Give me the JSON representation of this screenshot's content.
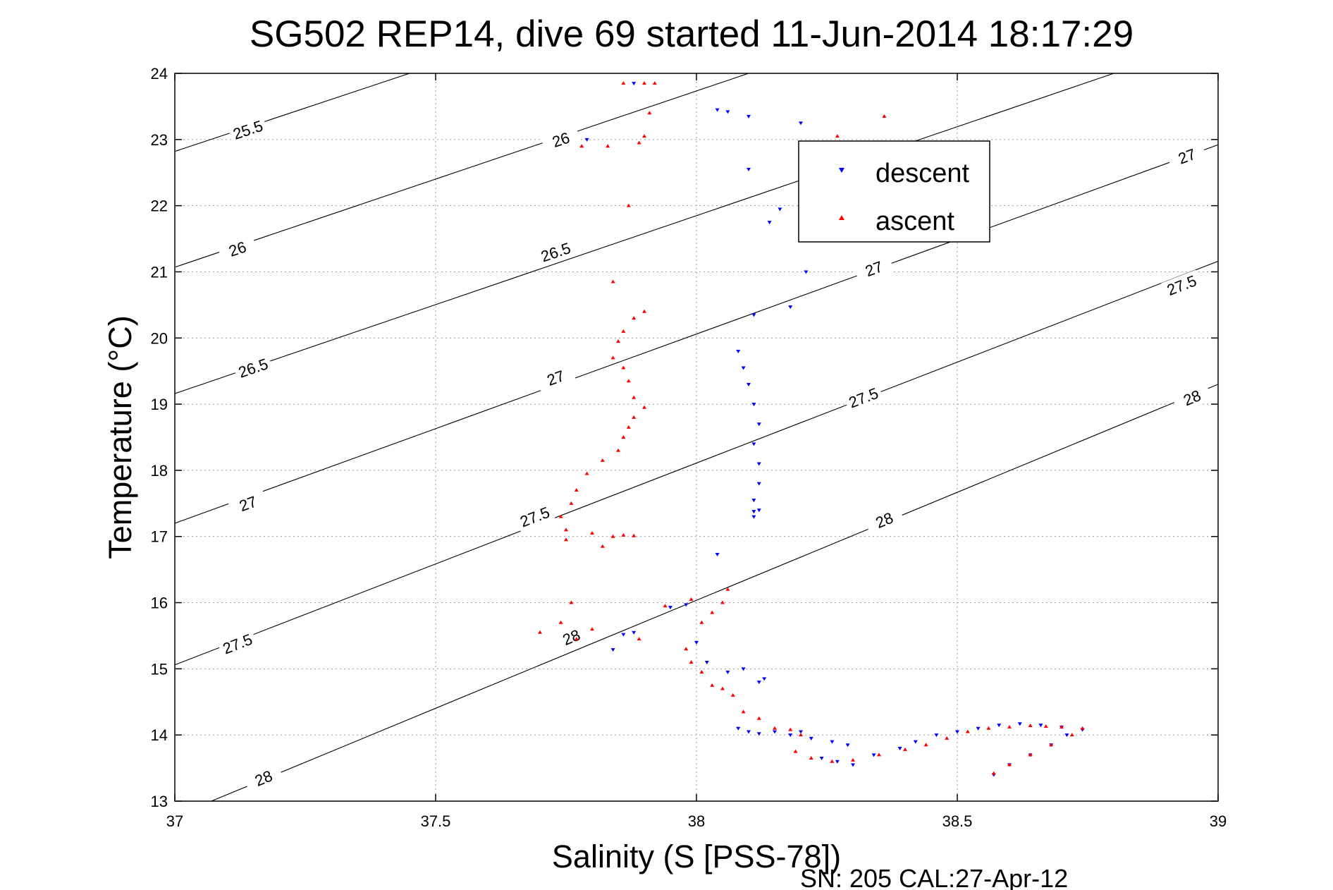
{
  "chart_data": {
    "type": "scatter",
    "title": "SG502 REP14, dive 69 started 11-Jun-2014 18:17:29",
    "xlabel": "Salinity (S [PSS-78])",
    "ylabel": "Temperature (°C)",
    "footer": "SN: 205  CAL:27-Apr-12",
    "xlim": [
      37,
      39
    ],
    "ylim": [
      13,
      24
    ],
    "xticks": [
      37,
      37.5,
      38,
      38.5,
      39
    ],
    "xtick_labels": [
      "37",
      "37.5",
      "38",
      "38.5",
      "39"
    ],
    "yticks": [
      13,
      14,
      15,
      16,
      17,
      18,
      19,
      20,
      21,
      22,
      23,
      24
    ],
    "ytick_labels": [
      "13",
      "14",
      "15",
      "16",
      "17",
      "18",
      "19",
      "20",
      "21",
      "22",
      "23",
      "24"
    ],
    "grid": true,
    "legend_position": "top-right",
    "colors": {
      "descent": "#0000ff",
      "ascent": "#ff0000",
      "contour": "#000000"
    },
    "legend": [
      {
        "label": "descent",
        "color": "#0000ff"
      },
      {
        "label": "ascent",
        "color": "#ff0000"
      }
    ],
    "contour_lines": [
      {
        "level": "25.5",
        "points": [
          [
            37,
            22.82
          ],
          [
            37.45,
            24.0
          ]
        ],
        "labels": [
          [
            37.14,
            23.15
          ]
        ]
      },
      {
        "level": "26",
        "points": [
          [
            37,
            21.07
          ],
          [
            38.1,
            24.0
          ]
        ],
        "labels": [
          [
            37.12,
            21.35
          ],
          [
            37.74,
            23.0
          ]
        ]
      },
      {
        "level": "26.5",
        "points": [
          [
            37,
            19.16
          ],
          [
            38.8,
            24.0
          ]
        ],
        "labels": [
          [
            37.15,
            19.55
          ],
          [
            37.73,
            21.3
          ]
        ]
      },
      {
        "level": "27",
        "points": [
          [
            37,
            17.2
          ],
          [
            39,
            22.92
          ]
        ],
        "labels": [
          [
            37.14,
            17.5
          ],
          [
            37.73,
            19.4
          ],
          [
            38.34,
            21.05
          ],
          [
            38.94,
            22.75
          ]
        ]
      },
      {
        "level": "27.5",
        "points": [
          [
            37,
            15.06
          ],
          [
            39,
            21.16
          ]
        ],
        "labels": [
          [
            37.12,
            15.38
          ],
          [
            37.69,
            17.3
          ],
          [
            38.32,
            19.1
          ],
          [
            38.93,
            20.8
          ]
        ]
      },
      {
        "level": "28",
        "points": [
          [
            37.07,
            13.0
          ],
          [
            39,
            19.3
          ]
        ],
        "labels": [
          [
            37.17,
            13.35
          ],
          [
            37.76,
            15.48
          ],
          [
            38.36,
            17.25
          ],
          [
            38.95,
            19.1
          ]
        ]
      }
    ],
    "series": [
      {
        "name": "descent",
        "marker": "triangle-down",
        "color": "#0000ff",
        "x": [
          37.88,
          37.79,
          38.04,
          38.06,
          38.1,
          38.2,
          38.5,
          38.1,
          38.16,
          38.14,
          38.21,
          38.18,
          38.11,
          38.08,
          38.09,
          38.1,
          38.11,
          38.12,
          38.11,
          38.12,
          38.12,
          38.11,
          38.12,
          38.11,
          38.11,
          38.04,
          37.98,
          37.95,
          37.88,
          37.86,
          37.84,
          38.0,
          38.02,
          38.06,
          38.09,
          38.12,
          38.13,
          38.08,
          38.1,
          38.12,
          38.15,
          38.18,
          38.2,
          38.22,
          38.26,
          38.29,
          38.24,
          38.27,
          38.3,
          38.34,
          38.39,
          38.42,
          38.46,
          38.5,
          38.54,
          38.58,
          38.62,
          38.66,
          38.7,
          38.74,
          38.71,
          38.68,
          38.64,
          38.6,
          38.57
        ],
        "y": [
          23.85,
          23.0,
          23.45,
          23.42,
          23.35,
          23.25,
          22.95,
          22.55,
          21.95,
          21.75,
          21.0,
          20.47,
          20.35,
          19.8,
          19.55,
          19.3,
          19.0,
          18.7,
          18.4,
          18.1,
          17.8,
          17.55,
          17.4,
          17.3,
          17.38,
          16.73,
          15.97,
          15.93,
          15.55,
          15.52,
          15.29,
          15.4,
          15.1,
          14.95,
          15.0,
          14.8,
          14.85,
          14.1,
          14.05,
          14.02,
          14.05,
          14.0,
          14.05,
          13.95,
          13.9,
          13.85,
          13.65,
          13.6,
          13.55,
          13.7,
          13.8,
          13.9,
          14.0,
          14.05,
          14.1,
          14.15,
          14.17,
          14.15,
          14.12,
          14.08,
          14.0,
          13.85,
          13.7,
          13.55,
          13.4
        ]
      },
      {
        "name": "ascent",
        "marker": "triangle-up",
        "color": "#ff0000",
        "x": [
          37.86,
          37.9,
          37.92,
          37.78,
          37.83,
          37.89,
          37.9,
          37.91,
          37.87,
          38.36,
          38.27,
          37.88,
          37.84,
          37.9,
          37.86,
          37.85,
          37.84,
          37.86,
          37.87,
          37.88,
          37.9,
          37.88,
          37.87,
          37.86,
          37.85,
          37.82,
          37.79,
          37.77,
          37.76,
          37.74,
          37.75,
          37.8,
          37.84,
          37.86,
          37.88,
          37.82,
          37.75,
          37.76,
          37.74,
          37.7,
          37.77,
          37.8,
          37.89,
          37.94,
          37.99,
          38.01,
          38.05,
          38.06,
          38.03,
          37.98,
          37.99,
          38.01,
          38.03,
          38.05,
          38.07,
          38.09,
          38.12,
          38.15,
          38.18,
          38.2,
          38.19,
          38.22,
          38.26,
          38.3,
          38.35,
          38.4,
          38.44,
          38.48,
          38.52,
          38.56,
          38.6,
          38.64,
          38.67,
          38.7,
          38.74,
          38.72,
          38.68,
          38.64,
          38.6,
          38.57
        ],
        "y": [
          23.85,
          23.85,
          23.85,
          22.9,
          22.9,
          22.95,
          23.05,
          23.4,
          22.0,
          23.35,
          23.05,
          20.3,
          20.85,
          20.4,
          20.1,
          19.95,
          19.7,
          19.55,
          19.35,
          19.1,
          18.95,
          18.8,
          18.65,
          18.5,
          18.3,
          18.15,
          17.95,
          17.7,
          17.5,
          17.3,
          17.1,
          17.05,
          17.0,
          17.02,
          17.01,
          16.85,
          16.95,
          16.0,
          15.7,
          15.55,
          15.45,
          15.6,
          15.45,
          15.95,
          16.05,
          15.7,
          16.0,
          16.2,
          15.85,
          15.3,
          15.1,
          14.95,
          14.75,
          14.7,
          14.6,
          14.35,
          14.25,
          14.1,
          14.08,
          14.0,
          13.75,
          13.65,
          13.6,
          13.62,
          13.7,
          13.78,
          13.85,
          13.95,
          14.05,
          14.1,
          14.12,
          14.14,
          14.13,
          14.12,
          14.1,
          14.0,
          13.85,
          13.7,
          13.55,
          13.42
        ]
      }
    ]
  }
}
